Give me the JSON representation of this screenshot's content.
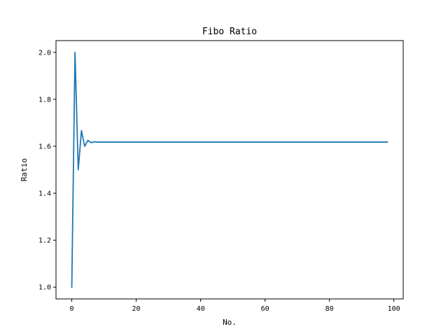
{
  "chart_data": {
    "type": "line",
    "title": "Fibo Ratio",
    "xlabel": "No.",
    "ylabel": "Ratio",
    "xlim": [
      -4.9,
      102.9
    ],
    "ylim": [
      0.95,
      2.05
    ],
    "xticks": [
      0,
      20,
      40,
      60,
      80,
      100
    ],
    "xtick_labels": [
      "0",
      "20",
      "40",
      "60",
      "80",
      "100"
    ],
    "yticks": [
      1.0,
      1.2,
      1.4,
      1.6,
      1.8,
      2.0
    ],
    "ytick_labels": [
      "1.0",
      "1.2",
      "1.4",
      "1.6",
      "1.8",
      "2.0"
    ],
    "grid": false,
    "series": [
      {
        "color": "#1f77b4",
        "x": [
          0,
          1,
          2,
          3,
          4,
          5,
          6,
          7,
          8,
          9,
          10,
          20,
          40,
          60,
          80,
          98
        ],
        "y": [
          1.0,
          2.0,
          1.5,
          1.6667,
          1.6,
          1.625,
          1.6154,
          1.619,
          1.6176,
          1.6182,
          1.618,
          1.618,
          1.618,
          1.618,
          1.618,
          1.618
        ]
      }
    ]
  }
}
